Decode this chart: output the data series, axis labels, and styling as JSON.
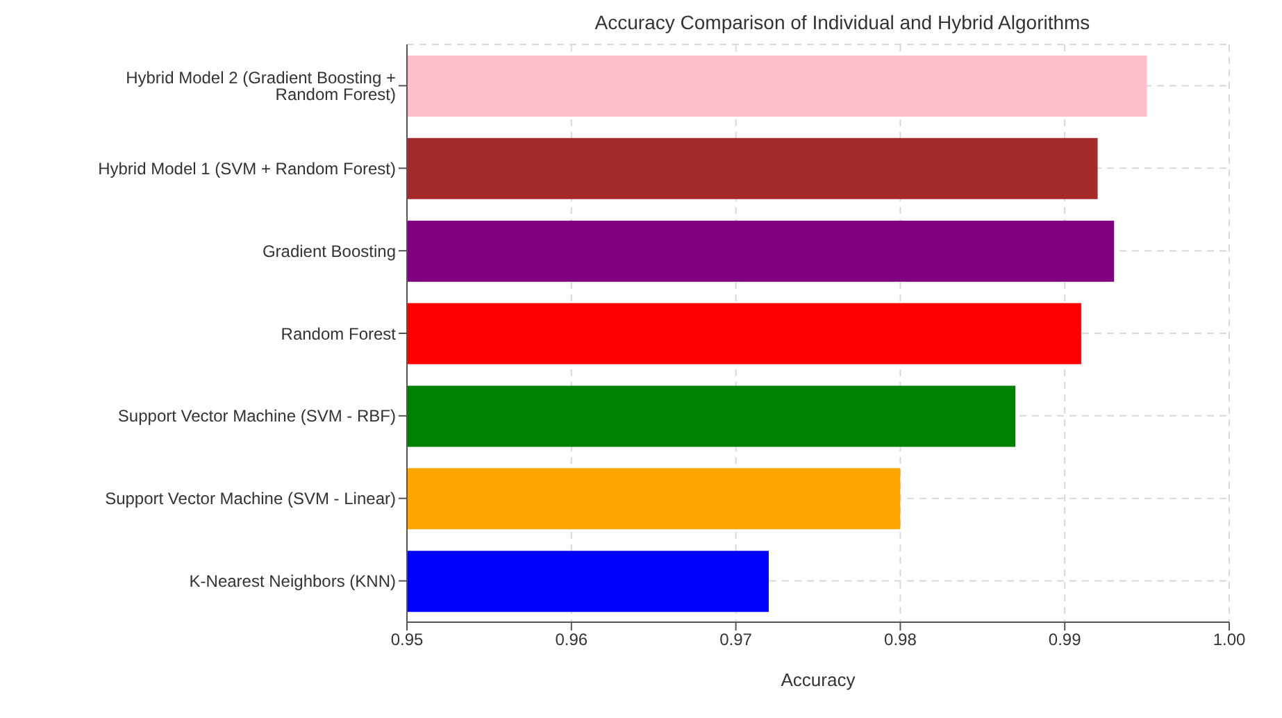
{
  "chart_data": {
    "type": "bar",
    "orientation": "horizontal",
    "title": "Accuracy Comparison of Individual and Hybrid Algorithms",
    "xlabel": "Accuracy",
    "categories": [
      "Hybrid Model 2 (Gradient Boosting + Random Forest)",
      "Hybrid Model 1 (SVM + Random Forest)",
      "Gradient Boosting",
      "Random Forest",
      "Support Vector Machine (SVM - RBF)",
      "Support Vector Machine (SVM - Linear)",
      "K-Nearest Neighbors (KNN)"
    ],
    "values": [
      0.995,
      0.992,
      0.993,
      0.991,
      0.987,
      0.98,
      0.972
    ],
    "colors": [
      "#ffc0cb",
      "#a52a2a",
      "#800080",
      "#ff0000",
      "#008000",
      "#ffa500",
      "#0000ff"
    ],
    "xlim": [
      0.95,
      1.0
    ],
    "xticks": [
      0.95,
      0.96,
      0.97,
      0.98,
      0.99,
      {
        "value": 1.0,
        "label": "1.00"
      }
    ],
    "grid": true
  }
}
